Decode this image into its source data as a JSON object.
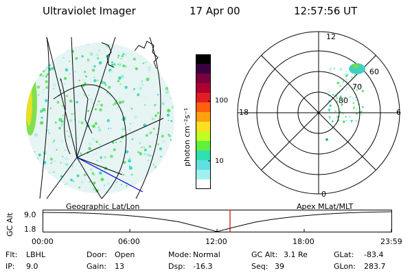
{
  "header": {
    "instrument": "Ultraviolet Imager",
    "date": "17 Apr 00",
    "time": "12:57:56 UT"
  },
  "colorbar": {
    "label": "photon cm⁻²s⁻¹",
    "tick_100": "100",
    "tick_10": "10",
    "colors": [
      "#000000",
      "#3a0040",
      "#7a0040",
      "#b00030",
      "#e02020",
      "#ff6010",
      "#ffa010",
      "#ffe020",
      "#c0ff20",
      "#60f040",
      "#30e0b0",
      "#60e0e0",
      "#a0f0f0",
      "#ffffff"
    ]
  },
  "polar_plot": {
    "mlt_top": "12",
    "mlt_left": "18",
    "mlt_right": "6",
    "mlt_bottom": "0",
    "lat_60": "60",
    "lat_70": "70",
    "lat_80": "80"
  },
  "timeline": {
    "y_axis_label": "GC Alt",
    "y_top": "9.0",
    "y_bottom": "1.8",
    "left_title": "Geographic Lat/Lon",
    "right_title": "Apex MLat/MLT",
    "ticks": [
      "00:00",
      "06:00",
      "12:00",
      "18:00",
      "23:59"
    ],
    "marker_color": "#cc0000"
  },
  "info": {
    "flt_label": "Flt:",
    "flt_value": "LBHL",
    "ip_label": "IP:",
    "ip_value": "9.0",
    "door_label": "Door:",
    "door_value": "Open",
    "gain_label": "Gain:",
    "gain_value": "13",
    "mode_label": "Mode:",
    "mode_value": "Normal",
    "dsp_label": "Dsp:",
    "dsp_value": "-16.3",
    "gcalt_label": "GC Alt:",
    "gcalt_value": "3.1 Re",
    "seq_label": "Seq:",
    "seq_value": "39",
    "glat_label": "GLat:",
    "glat_value": "-83.4",
    "glon_label": "GLon:",
    "glon_value": "283.7"
  }
}
